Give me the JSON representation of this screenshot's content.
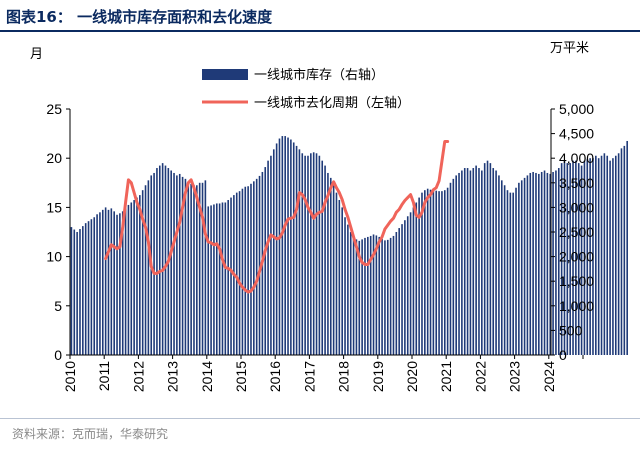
{
  "header": {
    "title": "图表16：  一线城市库存面积和去化速度"
  },
  "footer": {
    "source": "资料来源：克而瑞，华泰研究"
  },
  "chart_data": {
    "type": "bar+line",
    "left_unit": "月",
    "right_unit": "万平米",
    "left_axis": {
      "ylim": [
        0,
        25
      ],
      "ticks": [
        "0",
        "5",
        "10",
        "15",
        "20",
        "25"
      ]
    },
    "right_axis": {
      "ylim": [
        0,
        5000
      ],
      "ticks": [
        "0",
        "500",
        "1,000",
        "1,500",
        "2,000",
        "2,500",
        "3,000",
        "3,500",
        "4,000",
        "4,500",
        "5,000"
      ]
    },
    "x_tick_labels": [
      "2010",
      "2011",
      "2012",
      "2013",
      "2014",
      "2015",
      "2016",
      "2017",
      "2018",
      "2019",
      "2020",
      "2021",
      "2022",
      "2023",
      "2024"
    ],
    "legend": [
      {
        "name": "一线城市库存（右轴）",
        "color": "#1f3a78"
      },
      {
        "name": "一线城市去化周期（左轴）",
        "color": "#f0645a"
      }
    ],
    "series": [
      {
        "name": "一线城市库存（右轴）",
        "type": "bar",
        "axis": "right",
        "x_start": "2010-01",
        "values": [
          2600,
          2550,
          2500,
          2560,
          2620,
          2680,
          2720,
          2760,
          2800,
          2860,
          2900,
          2950,
          3000,
          2950,
          2980,
          2920,
          2850,
          2880,
          2920,
          2980,
          3050,
          3100,
          3150,
          3200,
          3250,
          3350,
          3450,
          3550,
          3650,
          3700,
          3800,
          3850,
          3900,
          3850,
          3800,
          3750,
          3700,
          3650,
          3680,
          3620,
          3580,
          3520,
          3480,
          3450,
          3450,
          3500,
          3500,
          3550,
          3020,
          3040,
          3060,
          3080,
          3080,
          3100,
          3100,
          3150,
          3200,
          3250,
          3300,
          3330,
          3380,
          3420,
          3430,
          3480,
          3530,
          3580,
          3640,
          3720,
          3820,
          3950,
          4050,
          4180,
          4300,
          4400,
          4450,
          4450,
          4420,
          4380,
          4320,
          4250,
          4180,
          4100,
          4050,
          4050,
          4100,
          4120,
          4100,
          4050,
          3950,
          3850,
          3700,
          3600,
          3450,
          3300,
          3150,
          3000,
          2800,
          2650,
          2500,
          2400,
          2350,
          2320,
          2350,
          2380,
          2400,
          2420,
          2450,
          2430,
          2400,
          2360,
          2330,
          2340,
          2380,
          2420,
          2500,
          2580,
          2660,
          2740,
          2820,
          2900,
          3000,
          3100,
          3200,
          3300,
          3350,
          3380,
          3360,
          3350,
          3340,
          3330,
          3330,
          3350,
          3400,
          3500,
          3580,
          3650,
          3700,
          3750,
          3800,
          3800,
          3750,
          3800,
          3850,
          3800,
          3750,
          3900,
          3950,
          3900,
          3800,
          3750,
          3650,
          3550,
          3450,
          3350,
          3300,
          3300,
          3400,
          3500,
          3550,
          3600,
          3650,
          3700,
          3720,
          3700,
          3680,
          3720,
          3750,
          3700,
          3680,
          3720,
          3750,
          3800,
          3900,
          3950,
          3900,
          3900,
          3950,
          3950,
          3900,
          3850,
          3950,
          3980,
          4000,
          4000,
          4050,
          4000,
          4050,
          4100,
          4050,
          3950,
          4000,
          4050,
          4100,
          4200,
          4250,
          4350
        ]
      },
      {
        "name": "一线城市去化周期（左轴）",
        "type": "line",
        "axis": "left",
        "x_start": "2011-01",
        "values": [
          9.8,
          10.5,
          11.2,
          11.0,
          10.8,
          11.0,
          13.0,
          15.5,
          17.8,
          17.5,
          16.5,
          15.5,
          14.8,
          13.8,
          13.0,
          11.5,
          9.0,
          8.3,
          8.3,
          8.5,
          8.6,
          9.0,
          9.5,
          10.5,
          11.5,
          12.5,
          13.5,
          15.0,
          16.5,
          17.5,
          17.8,
          17.0,
          16.0,
          15.0,
          14.0,
          12.3,
          11.5,
          11.4,
          11.2,
          11.3,
          10.8,
          9.7,
          8.9,
          8.8,
          8.6,
          8.2,
          7.9,
          7.3,
          6.9,
          6.6,
          6.4,
          6.5,
          6.9,
          7.5,
          8.5,
          9.5,
          10.6,
          11.5,
          12.2,
          12.0,
          11.8,
          11.9,
          12.4,
          13.2,
          13.8,
          13.9,
          14.0,
          14.8,
          16.5,
          16.3,
          15.8,
          15.0,
          14.5,
          13.9,
          14.3,
          14.5,
          14.6,
          15.5,
          16.2,
          17.0,
          17.6,
          17.0,
          16.5,
          15.8,
          14.8,
          14.0,
          13.0,
          12.0,
          11.0,
          10.0,
          9.4,
          9.2,
          9.2,
          9.7,
          10.2,
          10.8,
          11.5,
          12.0,
          12.8,
          13.2,
          13.6,
          13.9,
          14.5,
          14.8,
          15.3,
          15.7,
          16.0,
          16.3,
          15.5,
          14.2,
          14.0,
          14.5,
          15.5,
          16.0,
          16.3,
          16.8,
          17.0,
          17.7,
          19.7,
          21.7,
          21.7
        ]
      }
    ]
  }
}
